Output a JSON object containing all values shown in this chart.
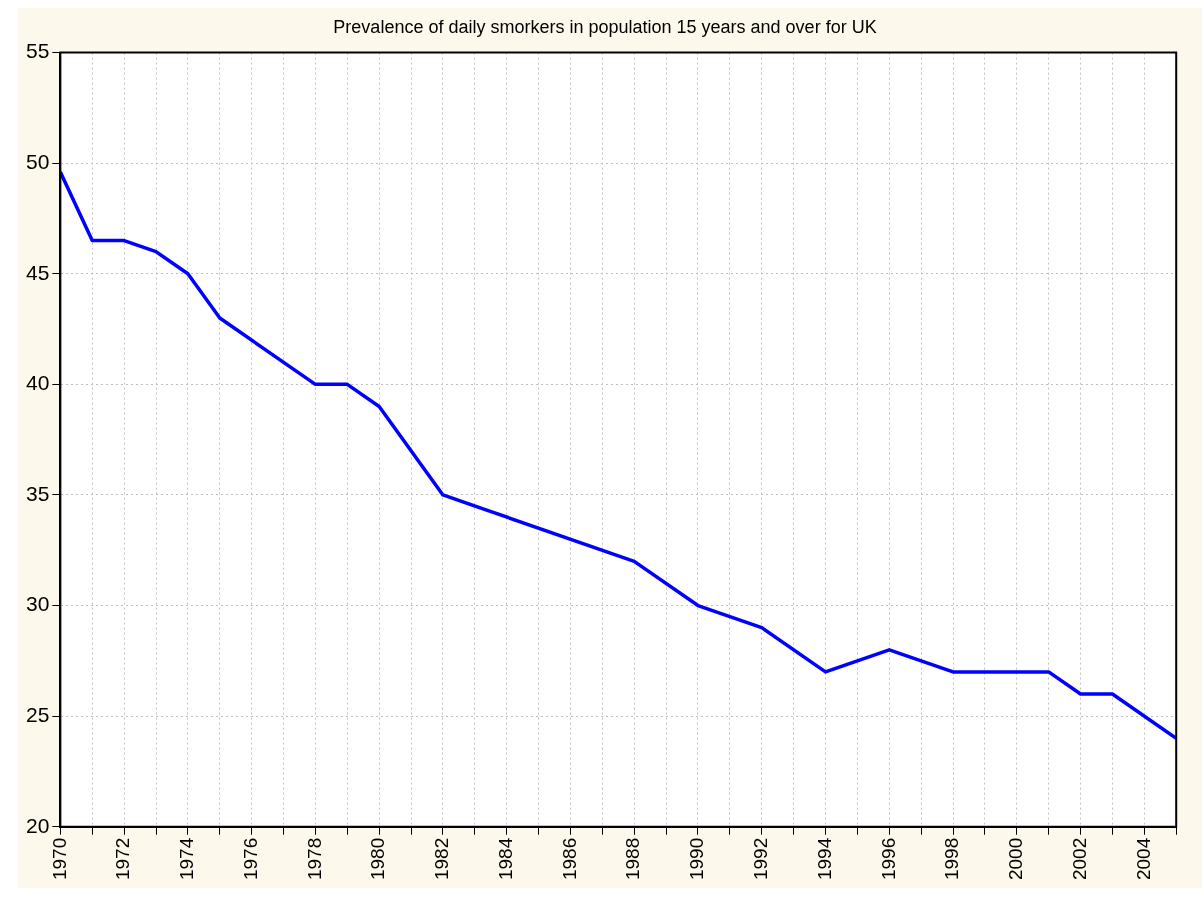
{
  "chart_data": {
    "type": "line",
    "title": "Prevalence of daily smorkers in population 15 years and over for UK",
    "x": [
      1970,
      1971,
      1972,
      1973,
      1974,
      1975,
      1978,
      1979,
      1980,
      1982,
      1988,
      1990,
      1992,
      1994,
      1996,
      1998,
      2001,
      2002,
      2003,
      2005
    ],
    "series": [
      {
        "color": "#0000ff",
        "values": [
          49.6,
          46.5,
          46.5,
          46,
          45,
          43,
          40,
          40,
          39,
          35,
          32,
          30,
          29,
          27,
          28,
          27,
          27,
          26,
          26,
          24
        ]
      }
    ],
    "xlim": [
      1970,
      2005
    ],
    "xticks": [
      1970,
      {
        "value": 1971,
        "label": null
      },
      1972,
      {
        "value": 1973,
        "label": null
      },
      1974,
      {
        "value": 1975,
        "label": null
      },
      1976,
      {
        "value": 1977,
        "label": null
      },
      1978,
      {
        "value": 1979,
        "label": null
      },
      1980,
      {
        "value": 1981,
        "label": null
      },
      1982,
      {
        "value": 1983,
        "label": null
      },
      1984,
      {
        "value": 1985,
        "label": null
      },
      1986,
      {
        "value": 1987,
        "label": null
      },
      1988,
      {
        "value": 1989,
        "label": null
      },
      1990,
      {
        "value": 1991,
        "label": null
      },
      1992,
      {
        "value": 1993,
        "label": null
      },
      1994,
      {
        "value": 1995,
        "label": null
      },
      1996,
      {
        "value": 1997,
        "label": null
      },
      1998,
      {
        "value": 1999,
        "label": null
      },
      2000,
      {
        "value": 2001,
        "label": null
      },
      2002,
      {
        "value": 2003,
        "label": null
      },
      2004,
      {
        "value": 2005,
        "label": null
      }
    ],
    "ylim": [
      20,
      55
    ],
    "yticks": [
      20,
      25,
      30,
      35,
      40,
      45,
      50,
      55
    ],
    "grid": true,
    "legend": false,
    "marker": "none",
    "line_style": "solid"
  }
}
